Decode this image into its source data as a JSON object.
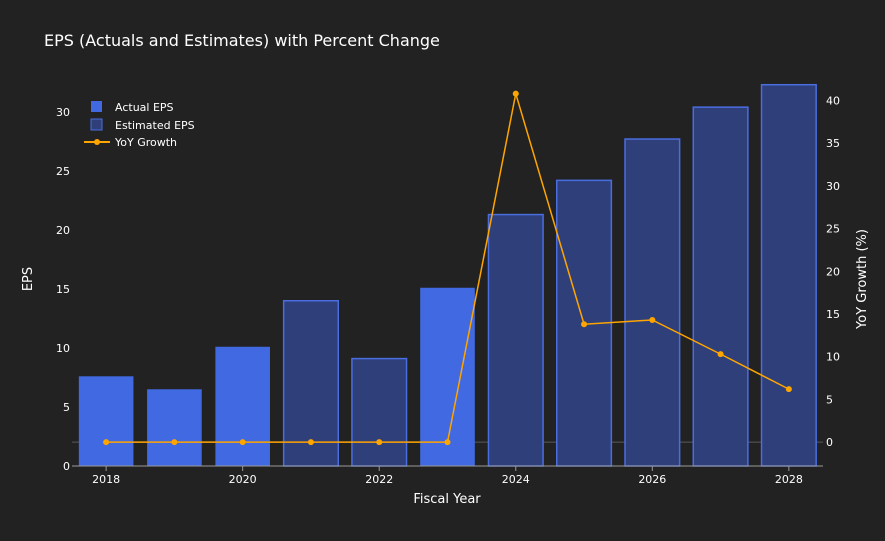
{
  "chart_data": {
    "type": "bar",
    "title": "EPS (Actuals and Estimates) with Percent Change",
    "xlabel": "Fiscal Year",
    "ylabel": "EPS",
    "y2label": "YoY Growth (%)",
    "xlim": [
      2017.5,
      2028.5
    ],
    "ylim": [
      0,
      32.7
    ],
    "y2lim": [
      -2.8,
      42.4
    ],
    "x_ticks": [
      2018,
      2020,
      2022,
      2024,
      2026,
      2028
    ],
    "y_ticks": [
      0,
      5,
      10,
      15,
      20,
      25,
      30
    ],
    "y2_ticks": [
      0,
      5,
      10,
      15,
      20,
      25,
      30,
      35,
      40
    ],
    "grid": false,
    "legend": "top-left",
    "series": [
      {
        "name": "Actual EPS",
        "kind": "bar",
        "color": "#4169e1",
        "x": [
          2018,
          2019,
          2020,
          2021,
          2022,
          2023
        ],
        "values": [
          7.6,
          6.5,
          10.1,
          13.9,
          8.7,
          15.1
        ]
      },
      {
        "name": "Estimated EPS",
        "kind": "bar",
        "color": "#2e3f7a",
        "edge": "#4a6de0",
        "x": [
          2021,
          2022,
          2024,
          2025,
          2026,
          2027,
          2028
        ],
        "values": [
          14.0,
          9.1,
          21.3,
          24.2,
          27.7,
          30.4,
          32.3
        ]
      },
      {
        "name": "YoY Growth",
        "kind": "line",
        "axis": "y2",
        "color": "#ffa500",
        "x": [
          2018,
          2019,
          2020,
          2021,
          2022,
          2023,
          2024,
          2025,
          2026,
          2027,
          2028
        ],
        "values": [
          0,
          0,
          0,
          0,
          0,
          0,
          40.8,
          13.8,
          14.3,
          10.3,
          6.2
        ]
      }
    ]
  }
}
